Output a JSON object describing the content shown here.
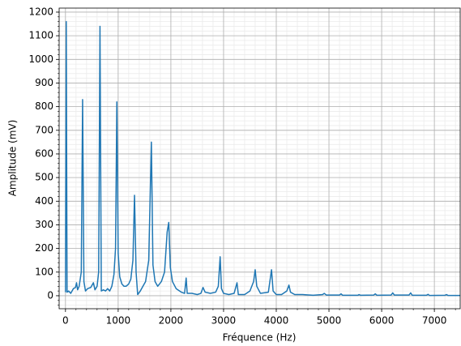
{
  "chart_data": {
    "type": "line",
    "xlabel": "Fréquence (Hz)",
    "ylabel": "Amplitude (mV)",
    "x": [
      0,
      15,
      30,
      60,
      100,
      150,
      190,
      210,
      230,
      260,
      300,
      325,
      350,
      380,
      420,
      480,
      530,
      560,
      600,
      630,
      655,
      680,
      720,
      760,
      800,
      840,
      880,
      920,
      950,
      975,
      1000,
      1030,
      1070,
      1110,
      1150,
      1200,
      1240,
      1280,
      1310,
      1340,
      1370,
      1420,
      1470,
      1520,
      1580,
      1630,
      1660,
      1700,
      1750,
      1820,
      1880,
      1930,
      1960,
      1990,
      2030,
      2100,
      2200,
      2260,
      2290,
      2310,
      2400,
      2500,
      2570,
      2610,
      2650,
      2750,
      2850,
      2900,
      2935,
      2960,
      3000,
      3100,
      3200,
      3255,
      3280,
      3400,
      3500,
      3570,
      3600,
      3630,
      3700,
      3850,
      3910,
      3940,
      4000,
      4100,
      4200,
      4240,
      4270,
      4350,
      4500,
      4700,
      4880,
      4910,
      4950,
      5200,
      5230,
      5260,
      5550,
      5570,
      5600,
      5850,
      5880,
      5910,
      6180,
      6210,
      6240,
      6520,
      6550,
      6580,
      6850,
      6880,
      6910,
      7200,
      7230,
      7260,
      7490
    ],
    "series": [
      {
        "color": "#1f77b4",
        "values": [
          15,
          1160,
          15,
          20,
          10,
          30,
          35,
          55,
          25,
          40,
          100,
          830,
          60,
          20,
          30,
          35,
          55,
          25,
          40,
          100,
          1140,
          20,
          25,
          20,
          30,
          20,
          40,
          90,
          200,
          820,
          180,
          80,
          50,
          40,
          40,
          50,
          70,
          150,
          425,
          100,
          5,
          20,
          40,
          60,
          150,
          650,
          130,
          60,
          40,
          60,
          100,
          270,
          310,
          120,
          60,
          30,
          15,
          10,
          75,
          10,
          10,
          5,
          10,
          35,
          15,
          10,
          15,
          40,
          165,
          30,
          10,
          5,
          10,
          55,
          5,
          5,
          20,
          60,
          110,
          40,
          10,
          15,
          110,
          20,
          5,
          5,
          20,
          45,
          15,
          5,
          5,
          2,
          5,
          10,
          3,
          3,
          8,
          2,
          2,
          5,
          2,
          3,
          8,
          2,
          3,
          12,
          3,
          3,
          12,
          2,
          2,
          6,
          1,
          2,
          5,
          1,
          1
        ]
      }
    ],
    "xlim": [
      -120,
      7490
    ],
    "ylim": [
      -55,
      1217
    ],
    "xticks": [
      0,
      1000,
      2000,
      3000,
      4000,
      5000,
      6000,
      7000
    ],
    "yticks": [
      0,
      100,
      200,
      300,
      400,
      500,
      600,
      700,
      800,
      900,
      1000,
      1100,
      1200
    ],
    "x_minor_step": 200,
    "y_minor_step": 20,
    "grid": true
  }
}
